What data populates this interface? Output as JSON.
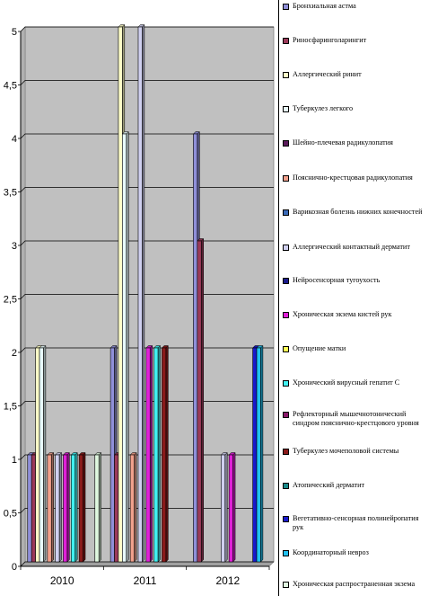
{
  "chart_data": {
    "type": "bar",
    "categories": [
      "2010",
      "2011",
      "2012"
    ],
    "ylim": [
      0,
      5
    ],
    "yticks": [
      "0",
      "0,5",
      "1",
      "1,5",
      "2",
      "2,5",
      "3",
      "3,5",
      "4",
      "4,5",
      "5"
    ],
    "grid": true,
    "legend_position": "right",
    "series": [
      {
        "name": "Бронхиальная астма",
        "color": "#8f8fd8",
        "values": [
          1,
          2,
          4
        ]
      },
      {
        "name": "Риносфаринголарингит",
        "color": "#9b3a5a",
        "values": [
          1,
          1,
          3
        ]
      },
      {
        "name": "Аллергический ринит",
        "color": "#ffffc8",
        "values": [
          2,
          5,
          0
        ]
      },
      {
        "name": "Туберкулез легкого",
        "color": "#e8fbfb",
        "values": [
          2,
          4,
          0
        ]
      },
      {
        "name": "Шейно-плечевая радикулопатия",
        "color": "#5a1a5a",
        "values": [
          0,
          0,
          0
        ]
      },
      {
        "name": "Пояснично-крестцовая радикулопатия",
        "color": "#f2a08c",
        "values": [
          1,
          1,
          0
        ]
      },
      {
        "name": "Варикозная болезнь нижних конечностей",
        "color": "#3a6ab8",
        "values": [
          0,
          0,
          0
        ]
      },
      {
        "name": "Аллергический контактный дерматит",
        "color": "#d0d0f0",
        "values": [
          1,
          5,
          1
        ]
      },
      {
        "name": "Нейросенсорная тугоухость",
        "color": "#1a1a8a",
        "values": [
          0,
          0,
          0
        ]
      },
      {
        "name": "Хроническая экзема кистей рук",
        "color": "#e020d8",
        "values": [
          1,
          2,
          1
        ]
      },
      {
        "name": "Опущение матки",
        "color": "#ffff55",
        "values": [
          0,
          0,
          0
        ]
      },
      {
        "name": "Хронический вирусный гепатит С",
        "color": "#40f0f0",
        "values": [
          1,
          2,
          0
        ]
      },
      {
        "name": "Рефлекторный мышечнотонический синдром пояснично-крестцового уровня",
        "color": "#8a1a6a",
        "values": [
          0,
          0,
          0
        ]
      },
      {
        "name": "Туберкулез мочеполовой системы",
        "color": "#8a1a1a",
        "values": [
          1,
          2,
          0
        ]
      },
      {
        "name": "Атопический дерматит",
        "color": "#1a8a8a",
        "values": [
          0,
          0,
          0
        ]
      },
      {
        "name": "Вегетативно-сенсорная полинейропатия рук",
        "color": "#1a1acc",
        "values": [
          0,
          0,
          2
        ]
      },
      {
        "name": "Координаторный невроз",
        "color": "#20c0f0",
        "values": [
          0,
          0,
          2
        ]
      },
      {
        "name": "Хроническая распространенная экзема",
        "color": "#e0f8e0",
        "values": [
          1,
          0,
          0
        ]
      }
    ]
  }
}
